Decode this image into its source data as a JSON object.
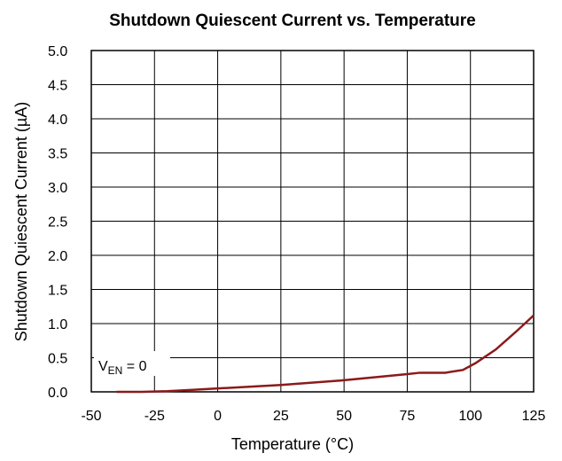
{
  "chart_data": {
    "type": "line",
    "title": "Shutdown Quiescent Current vs. Temperature",
    "xlabel": "Temperature (°C)",
    "ylabel": "Shutdown Quiescent Current (µA)",
    "annotation": {
      "main": "V",
      "subscript": "EN",
      "suffix": " = 0"
    },
    "x": [
      -40,
      -30,
      -20,
      -10,
      0,
      25,
      50,
      75,
      80,
      90,
      97,
      102,
      110,
      118,
      125
    ],
    "series": [
      {
        "name": null,
        "color": "#8b1a1a",
        "values": [
          0,
          0,
          0.01,
          0.03,
          0.05,
          0.1,
          0.17,
          0.26,
          0.28,
          0.28,
          0.32,
          0.42,
          0.62,
          0.88,
          1.12
        ]
      }
    ],
    "xlim": [
      -50,
      125
    ],
    "xticks": [
      -50,
      -25,
      0,
      25,
      50,
      75,
      100,
      125
    ],
    "ylim": [
      0,
      5
    ],
    "yticks": [
      {
        "value": 0,
        "label": "0.0"
      },
      0.5,
      {
        "value": 1,
        "label": "1.0"
      },
      1.5,
      {
        "value": 2,
        "label": "2.0"
      },
      2.5,
      {
        "value": 3,
        "label": "3.0"
      },
      3.5,
      {
        "value": 4,
        "label": "4.0"
      },
      4.5,
      {
        "value": 5,
        "label": "5.0"
      }
    ],
    "grid": true
  }
}
